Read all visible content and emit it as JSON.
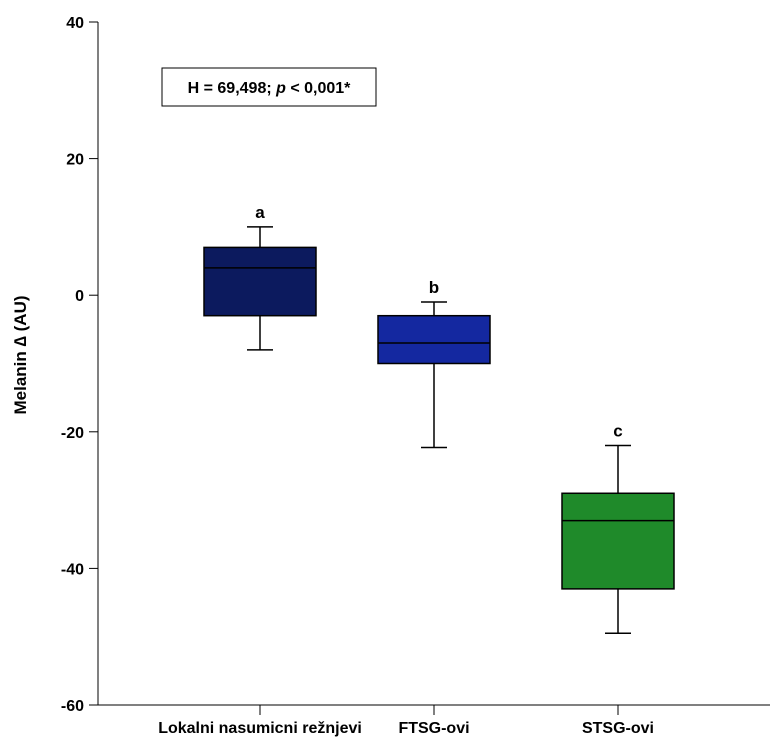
{
  "chart_data": {
    "type": "box",
    "ylabel": "Melanin ∆ (AU)",
    "ylim": [
      -60,
      40
    ],
    "yticks": [
      -60,
      -40,
      -20,
      0,
      20,
      40
    ],
    "ytick_labels": [
      "-60",
      "-40",
      "-20",
      "0",
      "20",
      "40"
    ],
    "categories": [
      "Lokalni nasumicni režnjevi",
      "FTSG-ovi",
      "STSG-ovi"
    ],
    "boxes": [
      {
        "category": "Lokalni nasumicni režnjevi",
        "min": -8,
        "q1": -3,
        "median": 4,
        "q3": 7,
        "max": 10,
        "letter": "a",
        "color": "#0c1a5e"
      },
      {
        "category": "FTSG-ovi",
        "min": -22.3,
        "q1": -10,
        "median": -7,
        "q3": -3,
        "max": -1,
        "letter": "b",
        "color": "#1428a0"
      },
      {
        "category": "STSG-ovi",
        "min": -49.5,
        "q1": -43,
        "median": -33,
        "q3": -29,
        "max": -22,
        "letter": "c",
        "color": "#1f8a2a"
      }
    ],
    "annotation": {
      "prefix": "H = 69,498; ",
      "p_symbol": "p",
      "suffix": " < 0,001*"
    },
    "grid": false,
    "legend": "none"
  }
}
